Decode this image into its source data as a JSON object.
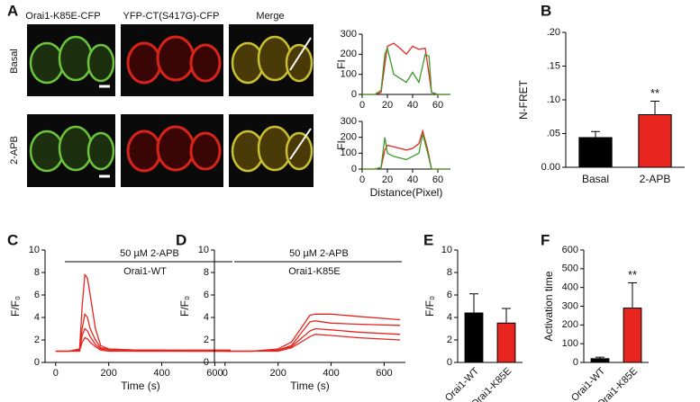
{
  "figure": {
    "panels": [
      "A",
      "B",
      "C",
      "D",
      "E",
      "F"
    ],
    "columns": [
      "Orai1-K85E-CFP",
      "YFP-CT(S417G)-CFP",
      "Merge"
    ],
    "rows": [
      "Basal",
      "2-APB"
    ]
  },
  "chart_data": [
    {
      "type": "line",
      "ylabel": "FI",
      "xlim": [
        0,
        70
      ],
      "xticks": [
        0,
        20,
        40,
        60
      ],
      "ylim": [
        0,
        300
      ],
      "yticks": [
        0,
        100,
        200,
        300
      ],
      "x": [
        0,
        5,
        10,
        15,
        18,
        20,
        25,
        30,
        35,
        40,
        45,
        50,
        53,
        55,
        60,
        70
      ],
      "series": [
        {
          "name": "red",
          "color": "#e8251f",
          "values": [
            0,
            0,
            0,
            10,
            150,
            240,
            255,
            230,
            200,
            240,
            225,
            230,
            100,
            10,
            0,
            0
          ]
        },
        {
          "name": "green",
          "color": "#3a9a2a",
          "values": [
            0,
            0,
            0,
            20,
            200,
            230,
            100,
            80,
            60,
            110,
            60,
            200,
            190,
            10,
            0,
            0
          ]
        }
      ]
    },
    {
      "type": "line",
      "ylabel": "FI",
      "xlabel": "Distance(Pixel)",
      "xlim": [
        0,
        70
      ],
      "xticks": [
        0,
        20,
        40,
        60
      ],
      "ylim": [
        0,
        300
      ],
      "yticks": [
        0,
        100,
        200,
        300
      ],
      "x": [
        0,
        5,
        10,
        15,
        18,
        20,
        25,
        30,
        35,
        40,
        45,
        48,
        52,
        55,
        60,
        70
      ],
      "series": [
        {
          "name": "red",
          "color": "#e8251f",
          "values": [
            0,
            0,
            0,
            10,
            120,
            150,
            140,
            130,
            120,
            130,
            160,
            240,
            120,
            0,
            0,
            0
          ]
        },
        {
          "name": "green",
          "color": "#3a9a2a",
          "values": [
            0,
            0,
            0,
            10,
            200,
            100,
            80,
            70,
            60,
            80,
            100,
            220,
            100,
            0,
            0,
            0
          ]
        }
      ]
    },
    {
      "type": "bar",
      "ylabel": "N-FRET",
      "categories": [
        "Basal",
        "2-APB"
      ],
      "values": [
        0.044,
        0.078
      ],
      "errors": [
        0.009,
        0.02
      ],
      "colors": [
        "#000000",
        "#e8251f"
      ],
      "significance": "**",
      "ylim": [
        0,
        0.2
      ],
      "yticks": [
        {
          "value": 0,
          "label": "0.00"
        },
        {
          "value": 0.05,
          "label": ".05"
        },
        {
          "value": 0.1,
          "label": ".10"
        },
        {
          "value": 0.15,
          "label": ".15"
        },
        {
          "value": 0.2,
          "label": ".20"
        }
      ]
    },
    {
      "type": "line",
      "ylabel": "F/F₀",
      "xlabel": "Time (s)",
      "annotation": "50 µM 2-APB",
      "label": "Orai1-WT",
      "xlim": [
        -40,
        680
      ],
      "xticks": [
        0,
        200,
        400,
        600
      ],
      "ylim": [
        0,
        10
      ],
      "yticks": [
        0,
        2,
        4,
        6,
        8,
        10
      ],
      "x": [
        0,
        50,
        90,
        100,
        110,
        120,
        130,
        150,
        170,
        200,
        300,
        400,
        500,
        660
      ],
      "series": [
        {
          "name": "cell 1",
          "color": "#e8251f",
          "values": [
            1,
            1,
            1.2,
            5,
            7.8,
            7.5,
            6,
            3,
            1.5,
            1.2,
            1.1,
            1.1,
            1.1,
            1.1
          ]
        },
        {
          "name": "cell 2",
          "color": "#e8251f",
          "values": [
            1,
            1,
            1.1,
            3,
            4.3,
            4,
            3,
            2,
            1.3,
            1.2,
            1.1,
            1.1,
            1,
            1
          ]
        },
        {
          "name": "cell 3",
          "color": "#e8251f",
          "values": [
            1,
            1,
            1.1,
            2.4,
            3,
            2.8,
            2.3,
            1.6,
            1.2,
            1.1,
            1,
            1,
            1,
            1
          ]
        },
        {
          "name": "cell 4",
          "color": "#e8251f",
          "values": [
            1,
            1,
            1,
            1.8,
            2.2,
            2.1,
            1.8,
            1.4,
            1.1,
            1,
            1,
            1,
            1,
            1
          ]
        }
      ]
    },
    {
      "type": "line",
      "ylabel": "F/F₀",
      "xlabel": "Time (s)",
      "annotation": "50 µM 2-APB",
      "label": "Orai1-K85E",
      "xlim": [
        -40,
        680
      ],
      "xticks": [
        0,
        200,
        400,
        600
      ],
      "ylim": [
        0,
        10
      ],
      "yticks": [
        0,
        2,
        4,
        6,
        8,
        10
      ],
      "x": [
        0,
        100,
        200,
        250,
        300,
        320,
        340,
        400,
        500,
        660
      ],
      "series": [
        {
          "name": "cell 1",
          "color": "#e8251f",
          "values": [
            1,
            1,
            1.2,
            1.8,
            3.5,
            4.2,
            4.3,
            4.3,
            4.1,
            3.8
          ]
        },
        {
          "name": "cell 2",
          "color": "#e8251f",
          "values": [
            1,
            1,
            1.1,
            1.5,
            3,
            3.6,
            3.7,
            3.5,
            3.4,
            3.3
          ]
        },
        {
          "name": "cell 3",
          "color": "#e8251f",
          "values": [
            1,
            1,
            1.1,
            1.4,
            2.4,
            2.8,
            3,
            2.9,
            2.7,
            2.5
          ]
        },
        {
          "name": "cell 4",
          "color": "#e8251f",
          "values": [
            1,
            1,
            1,
            1.3,
            2,
            2.3,
            2.5,
            2.4,
            2.2,
            2
          ]
        }
      ]
    },
    {
      "type": "bar",
      "ylabel": "F/F₀",
      "categories": [
        "Orai1-WT",
        "Orai1-K85E"
      ],
      "values": [
        4.4,
        3.5
      ],
      "errors": [
        1.7,
        1.3
      ],
      "colors": [
        "#000000",
        "#e8251f"
      ],
      "ylim": [
        0,
        10
      ],
      "yticks": [
        0,
        2,
        4,
        6,
        8,
        10
      ]
    },
    {
      "type": "bar",
      "ylabel": "Activation time",
      "categories": [
        "Orai1-WT",
        "Orai1-K85E"
      ],
      "values": [
        20,
        290
      ],
      "errors": [
        8,
        135
      ],
      "colors": [
        "#000000",
        "#e8251f"
      ],
      "significance": "**",
      "ylim": [
        0,
        600
      ],
      "yticks": [
        0,
        100,
        200,
        300,
        400,
        500,
        600
      ]
    }
  ]
}
